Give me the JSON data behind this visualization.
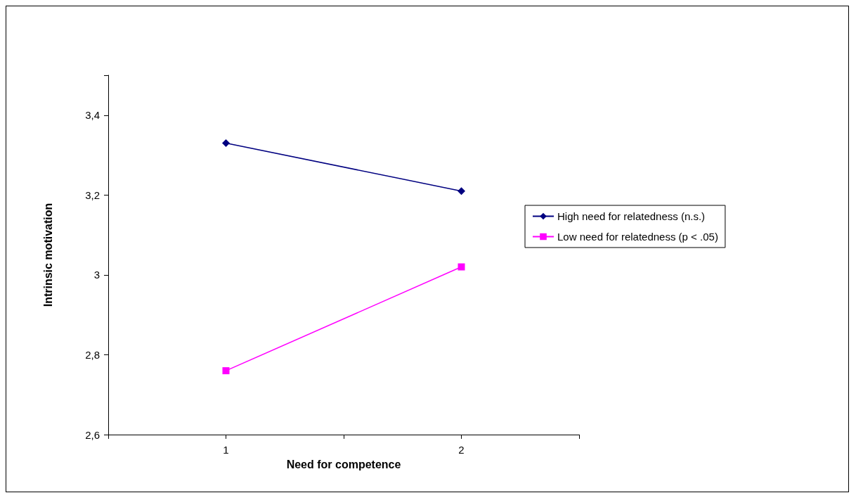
{
  "chart_data": {
    "type": "line",
    "xlabel": "Need for competence",
    "ylabel": "Intrinsic motivation",
    "x": [
      1,
      2
    ],
    "xlim": [
      0.5,
      2.5
    ],
    "xticks": [
      {
        "value": 0.5,
        "label": null
      },
      1,
      {
        "value": 1.5,
        "label": null
      },
      2,
      {
        "value": 2.5,
        "label": null
      }
    ],
    "series": [
      {
        "name": "High need for relatedness (n.s.)",
        "color": "#000080",
        "marker": "diamond",
        "values": [
          3.33,
          3.21
        ]
      },
      {
        "name": "Low need for relatedness (p < .05)",
        "color": "#ff00ff",
        "marker": "square",
        "values": [
          2.76,
          3.02
        ]
      }
    ],
    "ylim": [
      2.6,
      3.5
    ],
    "yticks": [
      {
        "value": 2.6,
        "label": "2,6"
      },
      {
        "value": 2.8,
        "label": "2,8"
      },
      3,
      {
        "value": 3.2,
        "label": "3,2"
      },
      {
        "value": 3.4,
        "label": "3,4"
      },
      {
        "value": 3.5,
        "label": null
      }
    ],
    "grid": false,
    "legend": "right",
    "line_style": "solid"
  }
}
